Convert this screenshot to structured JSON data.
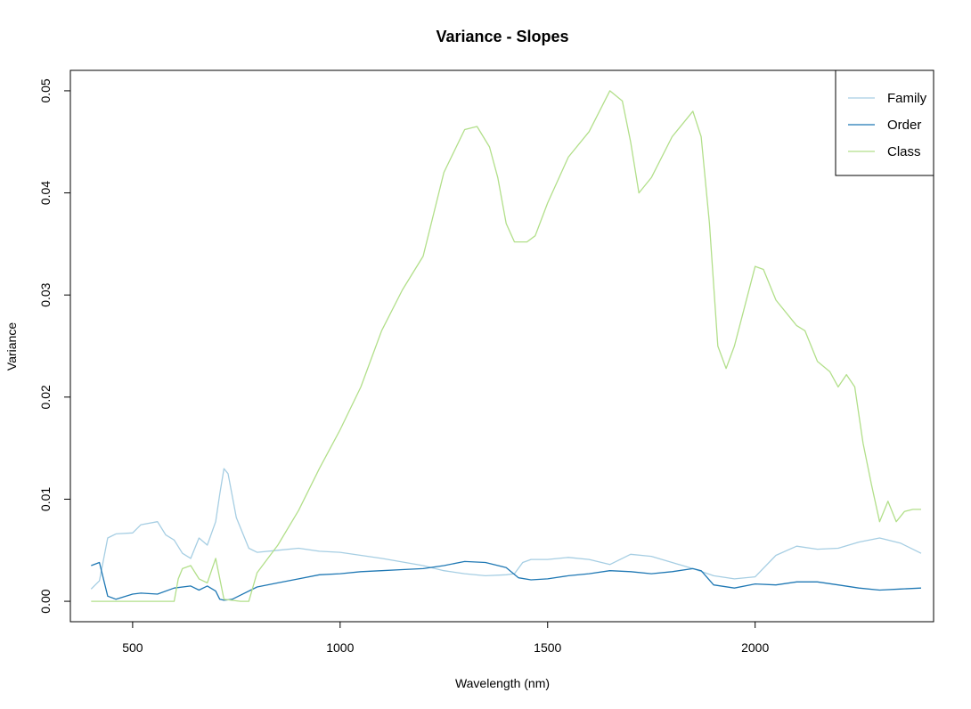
{
  "chart_data": {
    "type": "line",
    "title": "Variance - Slopes",
    "xlabel": "Wavelength (nm)",
    "ylabel": "Variance",
    "xlim": [
      350,
      2430
    ],
    "ylim": [
      -0.002,
      0.052
    ],
    "xticks": [
      500,
      1000,
      1500,
      2000
    ],
    "xtick_labels": [
      "500",
      "1000",
      "1500",
      "2000"
    ],
    "yticks": [
      0.0,
      0.01,
      0.02,
      0.03,
      0.04,
      0.05
    ],
    "ytick_labels": [
      "0.00",
      "0.01",
      "0.02",
      "0.03",
      "0.04",
      "0.05"
    ],
    "grid": false,
    "legend_position": "top-right",
    "series": [
      {
        "name": "Family",
        "color": "#a6cee3",
        "x": [
          400,
          420,
          440,
          460,
          500,
          520,
          560,
          580,
          600,
          620,
          640,
          660,
          680,
          700,
          710,
          720,
          730,
          750,
          780,
          800,
          850,
          900,
          950,
          1000,
          1100,
          1200,
          1250,
          1300,
          1350,
          1400,
          1420,
          1440,
          1460,
          1500,
          1550,
          1600,
          1650,
          1700,
          1750,
          1800,
          1850,
          1900,
          1950,
          2000,
          2050,
          2100,
          2150,
          2200,
          2250,
          2300,
          2350,
          2400
        ],
        "y": [
          0.0012,
          0.002,
          0.0062,
          0.0066,
          0.0067,
          0.0075,
          0.0078,
          0.0065,
          0.006,
          0.0047,
          0.0042,
          0.0062,
          0.0055,
          0.0078,
          0.0105,
          0.013,
          0.0125,
          0.0082,
          0.0052,
          0.0048,
          0.005,
          0.0052,
          0.0049,
          0.0048,
          0.0042,
          0.0035,
          0.003,
          0.0027,
          0.0025,
          0.0026,
          0.0027,
          0.0038,
          0.0041,
          0.0041,
          0.0043,
          0.0041,
          0.0036,
          0.0046,
          0.0044,
          0.0038,
          0.0032,
          0.0025,
          0.0022,
          0.0024,
          0.0045,
          0.0054,
          0.0051,
          0.0052,
          0.0058,
          0.0062,
          0.0057,
          0.0047
        ]
      },
      {
        "name": "Order",
        "color": "#1f78b4",
        "x": [
          400,
          420,
          440,
          460,
          500,
          520,
          560,
          600,
          640,
          660,
          680,
          700,
          710,
          720,
          740,
          760,
          800,
          850,
          900,
          950,
          1000,
          1050,
          1100,
          1150,
          1200,
          1250,
          1300,
          1350,
          1400,
          1430,
          1460,
          1500,
          1550,
          1600,
          1650,
          1700,
          1750,
          1800,
          1850,
          1870,
          1900,
          1950,
          2000,
          2050,
          2100,
          2150,
          2200,
          2250,
          2300,
          2350,
          2400
        ],
        "y": [
          0.0035,
          0.0038,
          0.0005,
          0.0002,
          0.0007,
          0.0008,
          0.0007,
          0.0013,
          0.0015,
          0.0011,
          0.0015,
          0.001,
          0.0002,
          0.0001,
          0.0002,
          0.0006,
          0.0014,
          0.0018,
          0.0022,
          0.0026,
          0.0027,
          0.0029,
          0.003,
          0.0031,
          0.0032,
          0.0035,
          0.0039,
          0.0038,
          0.0033,
          0.0023,
          0.0021,
          0.0022,
          0.0025,
          0.0027,
          0.003,
          0.0029,
          0.0027,
          0.0029,
          0.0032,
          0.003,
          0.0016,
          0.0013,
          0.0017,
          0.0016,
          0.0019,
          0.0019,
          0.0016,
          0.0013,
          0.0011,
          0.0012,
          0.0013
        ]
      },
      {
        "name": "Class",
        "color": "#b2df8a",
        "x": [
          400,
          500,
          600,
          610,
          620,
          640,
          660,
          680,
          700,
          720,
          760,
          780,
          800,
          850,
          900,
          950,
          1000,
          1050,
          1100,
          1150,
          1200,
          1250,
          1300,
          1330,
          1360,
          1380,
          1400,
          1420,
          1450,
          1470,
          1500,
          1550,
          1600,
          1650,
          1680,
          1700,
          1720,
          1750,
          1800,
          1850,
          1870,
          1890,
          1910,
          1930,
          1950,
          2000,
          2020,
          2050,
          2100,
          2120,
          2150,
          2180,
          2200,
          2220,
          2240,
          2260,
          2280,
          2300,
          2320,
          2340,
          2360,
          2380,
          2400
        ],
        "y": [
          0.0,
          0.0,
          0.0,
          0.0022,
          0.0032,
          0.0035,
          0.0022,
          0.0018,
          0.0042,
          0.0002,
          0.0,
          0.0,
          0.0028,
          0.0055,
          0.0089,
          0.013,
          0.0168,
          0.021,
          0.0265,
          0.0305,
          0.0338,
          0.042,
          0.0462,
          0.0465,
          0.0445,
          0.0415,
          0.037,
          0.0352,
          0.0352,
          0.0358,
          0.039,
          0.0435,
          0.046,
          0.05,
          0.049,
          0.045,
          0.04,
          0.0415,
          0.0455,
          0.048,
          0.0455,
          0.037,
          0.025,
          0.0228,
          0.025,
          0.0328,
          0.0325,
          0.0295,
          0.027,
          0.0265,
          0.0235,
          0.0225,
          0.021,
          0.0222,
          0.021,
          0.0155,
          0.0115,
          0.0078,
          0.0098,
          0.0078,
          0.0088,
          0.009,
          0.009
        ]
      }
    ]
  }
}
